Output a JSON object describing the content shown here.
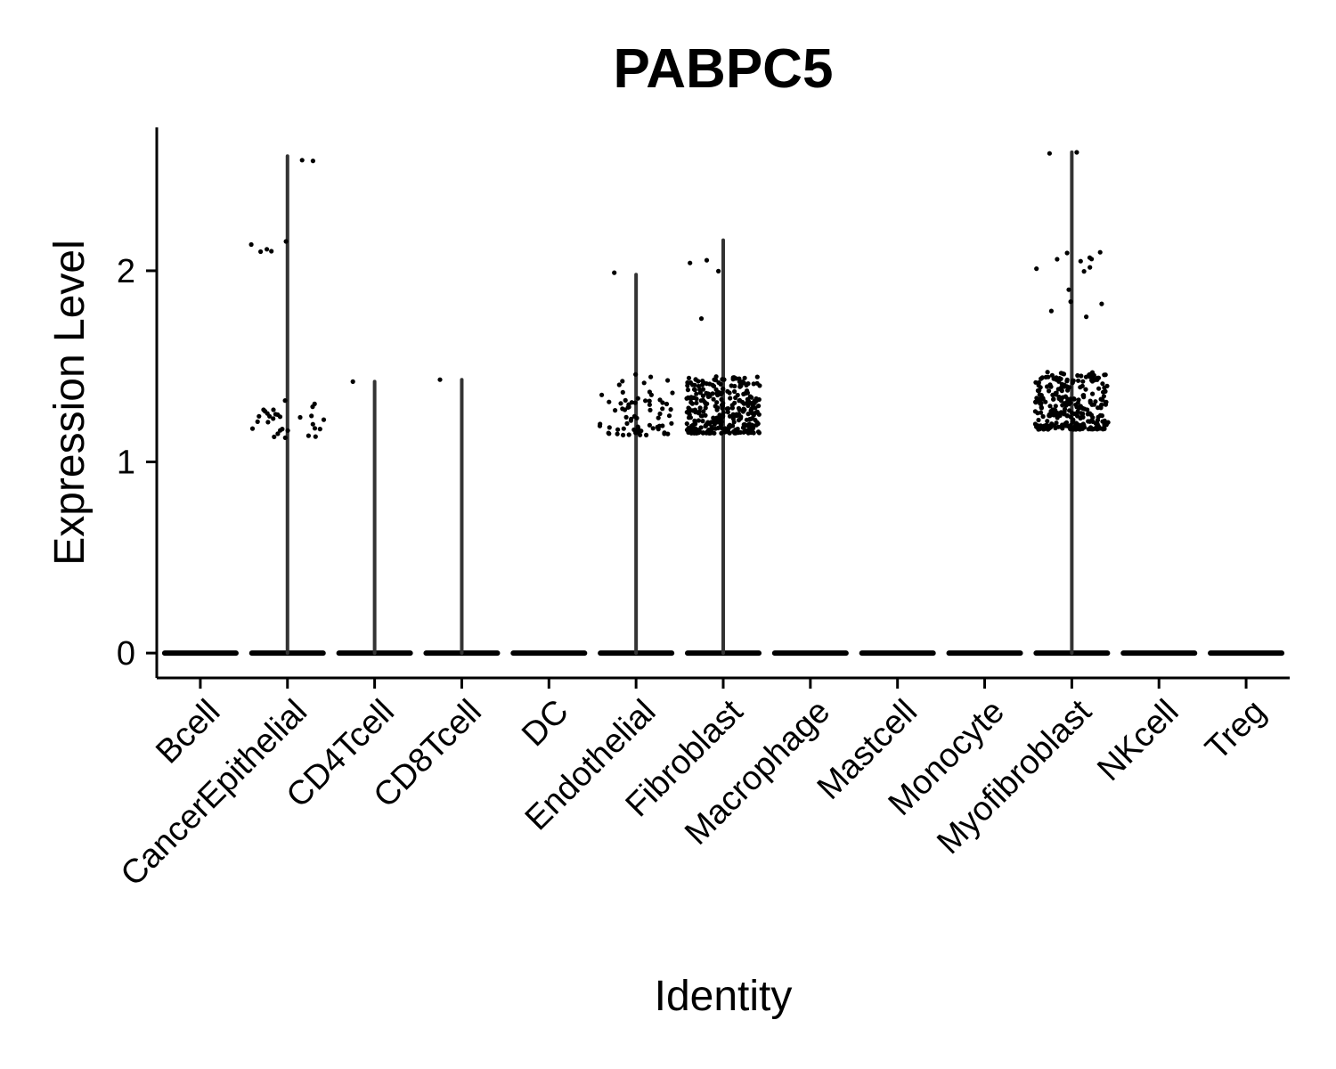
{
  "chart_data": {
    "type": "violin",
    "title": "PABPC5",
    "xlabel": "Identity",
    "ylabel": "Expression Level",
    "ylim": [
      -0.13,
      2.75
    ],
    "yticks": [
      0,
      1,
      2
    ],
    "categories": [
      "Bcell",
      "CancerEpithelial",
      "CD4Tcell",
      "CD8Tcell",
      "DC",
      "Endothelial",
      "Fibroblast",
      "Macrophage",
      "Mastcell",
      "Monocyte",
      "Myofibroblast",
      "NKcell",
      "Treg"
    ],
    "max_values": [
      0,
      2.6,
      1.42,
      1.43,
      0,
      1.98,
      2.16,
      0,
      0,
      0,
      2.62,
      0,
      0
    ],
    "point_groups": [
      [],
      [
        {
          "min": 1.12,
          "max": 1.33,
          "n": 30
        },
        {
          "min": 2.09,
          "max": 2.18,
          "n": 5
        },
        {
          "min": 2.56,
          "max": 2.6,
          "n": 2
        }
      ],
      [
        {
          "min": 1.41,
          "max": 1.42,
          "n": 1
        }
      ],
      [
        {
          "min": 1.42,
          "max": 1.43,
          "n": 1
        }
      ],
      [],
      [
        {
          "min": 1.14,
          "max": 1.46,
          "n": 70
        },
        {
          "min": 1.97,
          "max": 1.99,
          "n": 1
        }
      ],
      [
        {
          "min": 1.15,
          "max": 1.45,
          "n": 300
        },
        {
          "min": 1.73,
          "max": 1.75,
          "n": 1
        },
        {
          "min": 1.99,
          "max": 2.16,
          "n": 3
        }
      ],
      [],
      [],
      [],
      [
        {
          "min": 1.17,
          "max": 1.47,
          "n": 280
        },
        {
          "min": 1.74,
          "max": 2.22,
          "n": 14
        },
        {
          "min": 2.58,
          "max": 2.62,
          "n": 2
        }
      ],
      [],
      []
    ],
    "colors": {
      "points": "#000000",
      "violin_outline": "#333333",
      "axis": "#000000"
    },
    "legend": "none",
    "grid": false
  }
}
